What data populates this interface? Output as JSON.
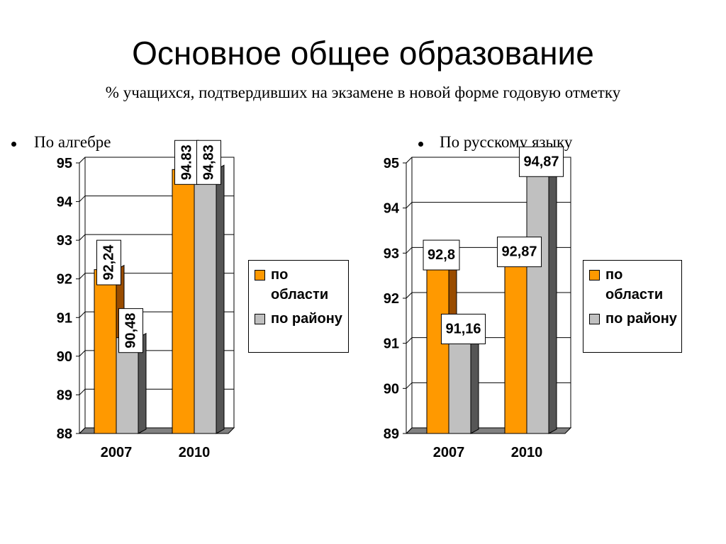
{
  "header": {
    "title": "Основное общее образование",
    "subtitle": "% учащихся, подтвердивших на экзамене в новой форме годовую отметку"
  },
  "chart_data": [
    {
      "type": "bar3d",
      "title": "По алгебре",
      "categories": [
        "2007",
        "2010"
      ],
      "series": [
        {
          "name": "по области",
          "color": "#ff9900",
          "values": [
            92.24,
            94.83
          ],
          "value_labels": [
            "92,24",
            "94.83"
          ]
        },
        {
          "name": "по району",
          "color": "#c0c0c0",
          "values": [
            90.48,
            94.83
          ],
          "value_labels": [
            "90,48",
            "94,83"
          ]
        }
      ],
      "ylim": [
        88,
        95
      ],
      "yticks": [
        88,
        89,
        90,
        91,
        92,
        93,
        94,
        95
      ],
      "grid": true,
      "legend": "right",
      "value_label_orientation": "vertical"
    },
    {
      "type": "bar3d",
      "title": "По русскому языку",
      "categories": [
        "2007",
        "2010"
      ],
      "series": [
        {
          "name": "по области",
          "color": "#ff9900",
          "values": [
            92.8,
            92.87
          ],
          "value_labels": [
            "92,8",
            "92,87"
          ]
        },
        {
          "name": "по району",
          "color": "#c0c0c0",
          "values": [
            91.16,
            94.87
          ],
          "value_labels": [
            "91,16",
            "94,87"
          ]
        }
      ],
      "ylim": [
        89,
        95
      ],
      "yticks": [
        89,
        90,
        91,
        92,
        93,
        94,
        95
      ],
      "grid": true,
      "legend": "right",
      "value_label_orientation": "horizontal"
    }
  ]
}
